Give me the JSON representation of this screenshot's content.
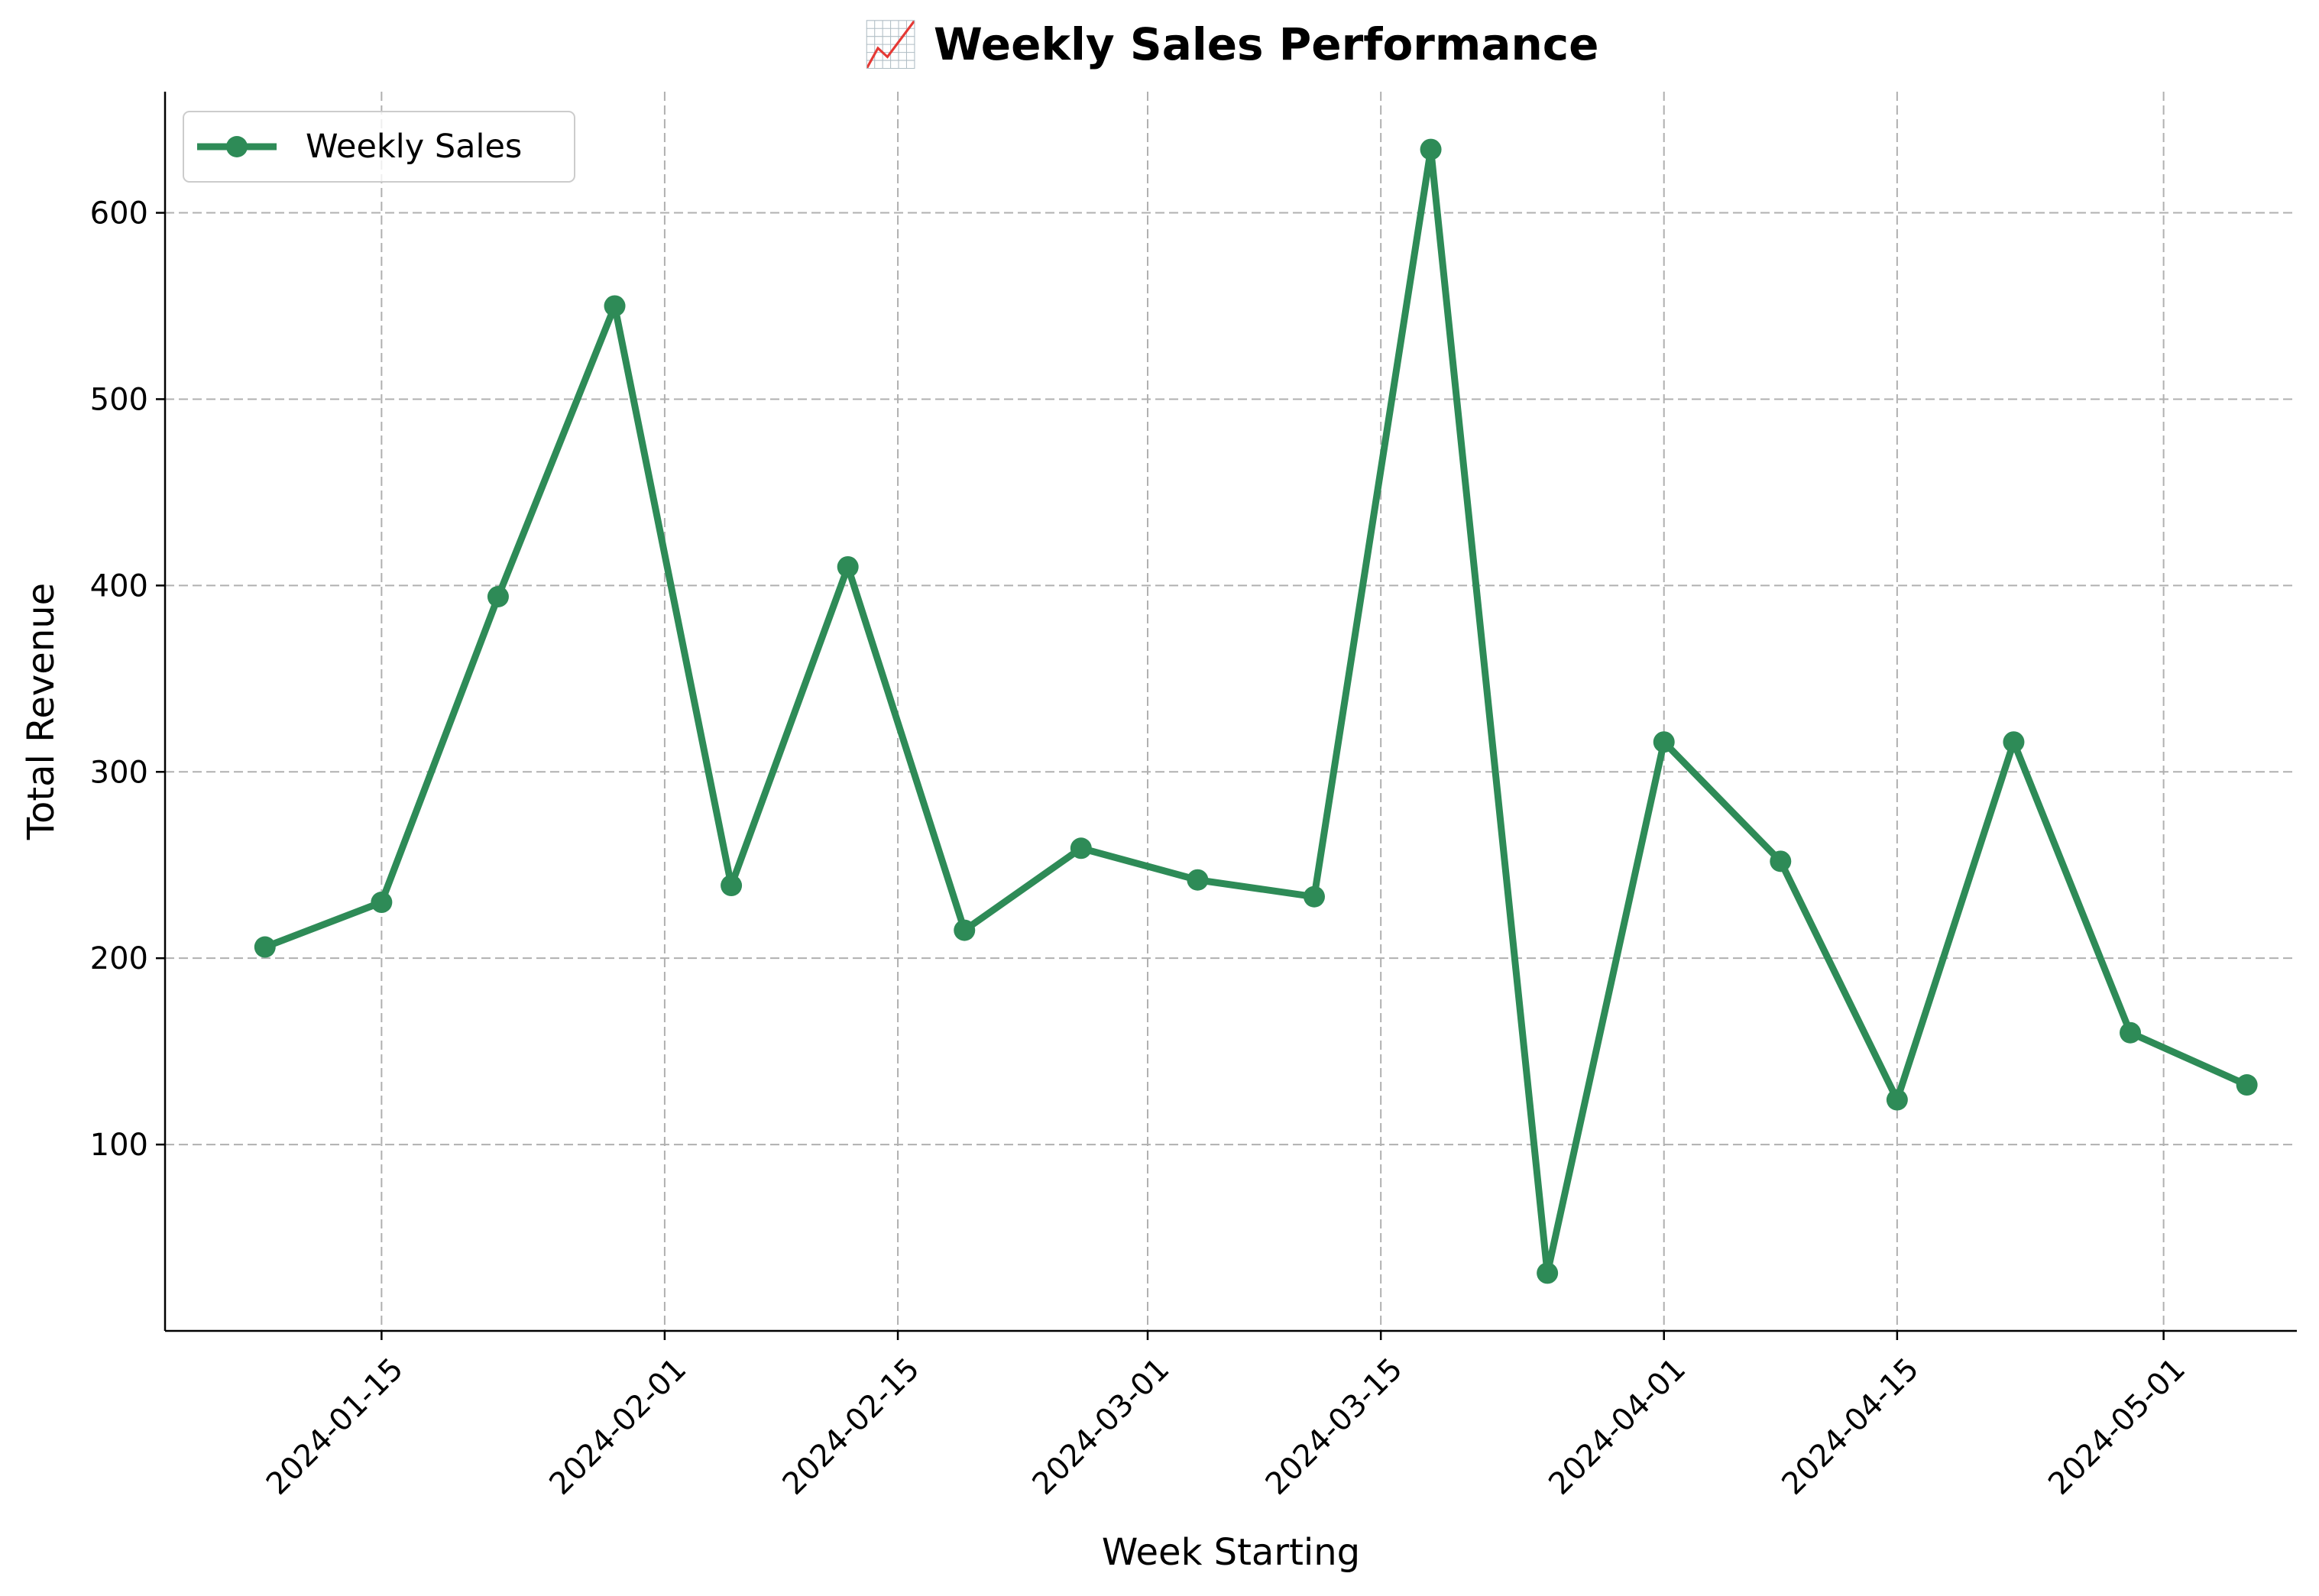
{
  "chart_data": {
    "type": "line",
    "title": "📈 Weekly Sales Performance",
    "xlabel": "Week Starting",
    "ylabel": "Total Revenue",
    "x_type": "date",
    "xlim": [
      "2024-01-02",
      "2024-05-09"
    ],
    "ylim": [
      0,
      665
    ],
    "x_ticks": [
      "2024-01-15",
      "2024-02-01",
      "2024-02-15",
      "2024-03-01",
      "2024-03-15",
      "2024-04-01",
      "2024-04-15",
      "2024-05-01"
    ],
    "y_ticks": [
      100,
      200,
      300,
      400,
      500,
      600
    ],
    "grid": true,
    "legend_position": "top-left",
    "series": [
      {
        "name": "Weekly Sales",
        "color": "#2e8b57",
        "marker": "circle",
        "x": [
          "2024-01-08",
          "2024-01-15",
          "2024-01-22",
          "2024-01-29",
          "2024-02-05",
          "2024-02-12",
          "2024-02-19",
          "2024-02-26",
          "2024-03-04",
          "2024-03-11",
          "2024-03-18",
          "2024-03-25",
          "2024-04-01",
          "2024-04-08",
          "2024-04-15",
          "2024-04-22",
          "2024-04-29",
          "2024-05-06"
        ],
        "values": [
          206,
          230,
          394,
          550,
          239,
          410,
          215,
          259,
          242,
          233,
          634,
          31,
          316,
          252,
          124,
          316,
          160,
          132
        ]
      }
    ]
  }
}
